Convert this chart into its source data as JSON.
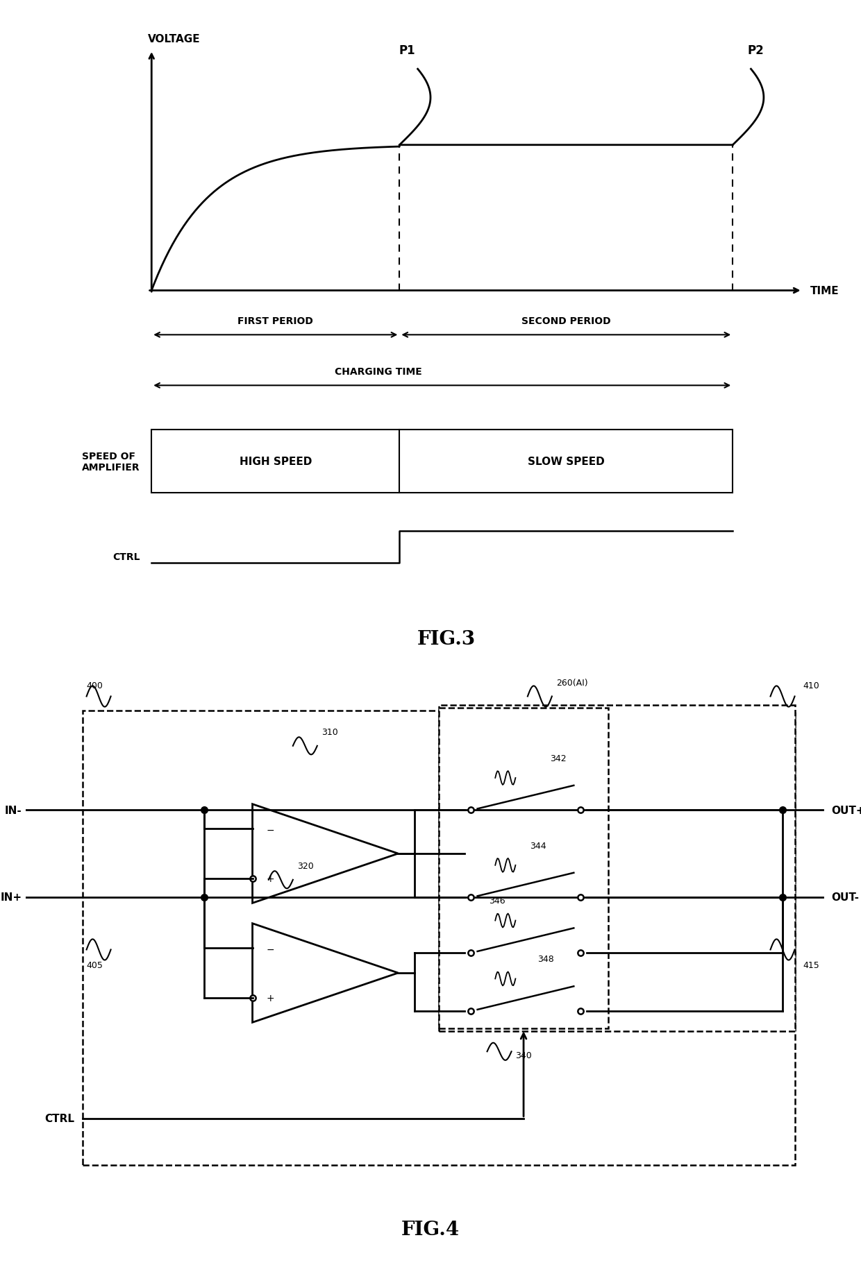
{
  "bg_color": "#ffffff",
  "fig3": {
    "title": "FIG.3",
    "voltage_label": "VOLTAGE",
    "time_label": "TIME",
    "p1_label": "P1",
    "p2_label": "P2",
    "first_period_label": "FIRST PERIOD",
    "second_period_label": "SECOND PERIOD",
    "charging_time_label": "CHARGING TIME",
    "high_speed_label": "HIGH SPEED",
    "slow_speed_label": "SLOW SPEED",
    "speed_of_amplifier_label": "SPEED OF\nAMPLIFIER",
    "ctrl_label": "CTRL"
  },
  "fig4": {
    "title": "FIG.4",
    "label_400": "400",
    "label_405": "405",
    "label_310": "310",
    "label_320": "320",
    "label_340": "340",
    "label_342": "342",
    "label_344": "344",
    "label_346": "346",
    "label_348": "348",
    "label_260AI": "260(AI)",
    "label_410": "410",
    "label_415": "415",
    "label_in_minus": "IN-",
    "label_in_plus": "IN+",
    "label_out_plus": "OUT+",
    "label_out_minus": "OUT-",
    "label_ctrl": "CTRL"
  }
}
